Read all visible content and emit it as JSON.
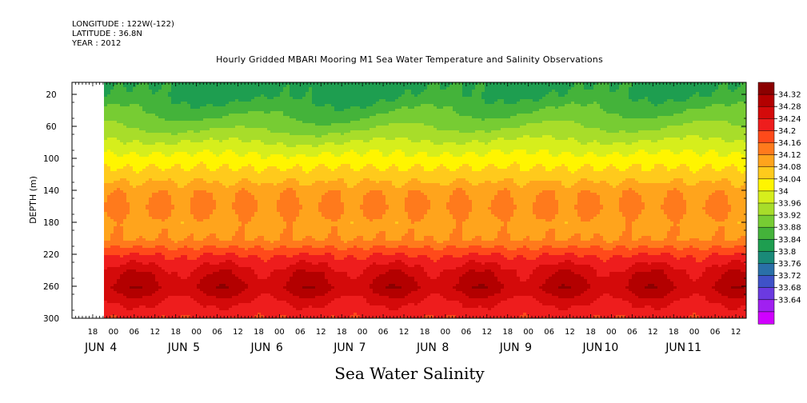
{
  "meta": {
    "longitude": "LONGITUDE : 122W(-122)",
    "latitude": "LATITUDE : 36.8N",
    "year": "YEAR : 2012"
  },
  "chart_data": {
    "type": "heatmap",
    "title": "Hourly Gridded MBARI Mooring M1 Sea Water Temperature and Salinity Observations",
    "xlabel": "Sea Water Salinity",
    "ylabel": "DEPTH (m)",
    "y_ticks": [
      "20",
      "60",
      "100",
      "140",
      "180",
      "220",
      "260",
      "300"
    ],
    "y_range": [
      5,
      300
    ],
    "x_range_hours": [
      "2012-06-03 12:00",
      "2012-06-11 15:00"
    ],
    "data_start": "2012-06-04 00:00",
    "x_hour_ticks": [
      "18",
      "00",
      "06",
      "12",
      "18",
      "00",
      "06",
      "12",
      "18",
      "00",
      "06",
      "12",
      "18",
      "00",
      "06",
      "12",
      "18",
      "00",
      "06",
      "12",
      "18",
      "00",
      "06",
      "12",
      "18",
      "00",
      "06",
      "12",
      "18",
      "00",
      "06",
      "12"
    ],
    "x_day_labels": [
      {
        "month": "JUN",
        "day": "4"
      },
      {
        "month": "JUN",
        "day": "5"
      },
      {
        "month": "JUN",
        "day": "6"
      },
      {
        "month": "JUN",
        "day": "7"
      },
      {
        "month": "JUN",
        "day": "8"
      },
      {
        "month": "JUN",
        "day": "9"
      },
      {
        "month": "JUN",
        "day": "10"
      },
      {
        "month": "JUN",
        "day": "11"
      }
    ],
    "colorbar": {
      "levels": [
        "34.32",
        "34.28",
        "34.24",
        "34.2",
        "34.16",
        "34.12",
        "34.08",
        "34.04",
        "34",
        "33.96",
        "33.92",
        "33.88",
        "33.84",
        "33.8",
        "33.76",
        "33.72",
        "33.68",
        "33.64"
      ],
      "colors": [
        "#8b0000",
        "#b30000",
        "#d40a0a",
        "#ee1d1d",
        "#ff4a1a",
        "#ff7a1c",
        "#ffa41c",
        "#ffca1c",
        "#fff500",
        "#d6ee1c",
        "#a8dd2a",
        "#77cc33",
        "#44b33a",
        "#1e9e50",
        "#1a8a78",
        "#2a70a8",
        "#3f52c8",
        "#6b3ae0",
        "#a020f0",
        "#d000ff"
      ]
    },
    "depth_profile": [
      {
        "depth": 5,
        "salinity": 33.83
      },
      {
        "depth": 20,
        "salinity": 33.84
      },
      {
        "depth": 40,
        "salinity": 33.88
      },
      {
        "depth": 60,
        "salinity": 33.92
      },
      {
        "depth": 80,
        "salinity": 33.97
      },
      {
        "depth": 100,
        "salinity": 34.02
      },
      {
        "depth": 120,
        "salinity": 34.06
      },
      {
        "depth": 140,
        "salinity": 34.11
      },
      {
        "depth": 160,
        "salinity": 34.13
      },
      {
        "depth": 180,
        "salinity": 34.1
      },
      {
        "depth": 200,
        "salinity": 34.12
      },
      {
        "depth": 220,
        "salinity": 34.2
      },
      {
        "depth": 240,
        "salinity": 34.26
      },
      {
        "depth": 260,
        "salinity": 34.29
      },
      {
        "depth": 280,
        "salinity": 34.24
      },
      {
        "depth": 300,
        "salinity": 34.2
      }
    ]
  }
}
